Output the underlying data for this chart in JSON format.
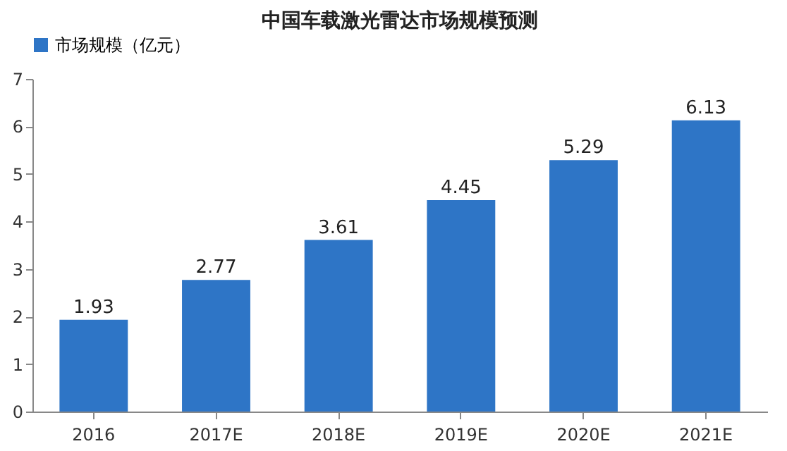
{
  "chart_data": {
    "type": "bar",
    "title": "中国车载激光雷达市场规模预测",
    "categories": [
      "2016",
      "2017E",
      "2018E",
      "2019E",
      "2020E",
      "2021E"
    ],
    "series": [
      {
        "name": "市场规模（亿元）",
        "color": "#2e75c6",
        "values": [
          1.93,
          2.77,
          3.61,
          4.45,
          5.29,
          6.13
        ]
      }
    ],
    "ylim": [
      0,
      7
    ],
    "yticks": [
      0,
      1,
      2,
      3,
      4,
      5,
      6,
      7
    ],
    "grid": false,
    "legend": "top",
    "data_labels": true
  }
}
